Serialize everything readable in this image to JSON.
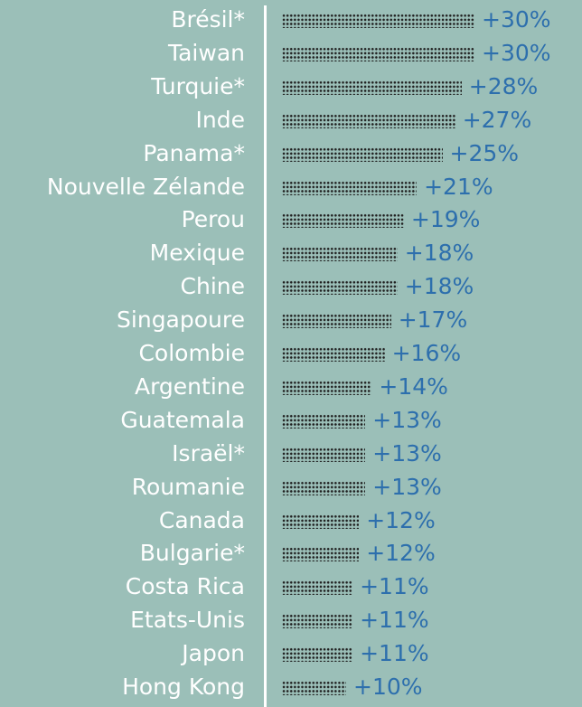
{
  "chart_data": {
    "type": "bar",
    "categories": [
      "Brésil*",
      "Taiwan",
      "Turquie*",
      "Inde",
      "Panama*",
      "Nouvelle Zélande",
      "Perou",
      "Mexique",
      "Chine",
      "Singapoure",
      "Colombie",
      "Argentine",
      "Guatemala",
      "Israël*",
      "Roumanie",
      "Canada",
      "Bulgarie*",
      "Costa Rica",
      "Etats-Unis",
      "Japon",
      "Hong Kong"
    ],
    "values": [
      30,
      30,
      28,
      27,
      25,
      21,
      19,
      18,
      18,
      17,
      16,
      14,
      13,
      13,
      13,
      12,
      12,
      11,
      11,
      11,
      10
    ],
    "value_labels": [
      "+30%",
      "+30%",
      "+28%",
      "+27%",
      "+25%",
      "+21%",
      "+19%",
      "+18%",
      "+18%",
      "+17%",
      "+16%",
      "+14%",
      "+13%",
      "+13%",
      "+13%",
      "+12%",
      "+12%",
      "+11%",
      "+11%",
      "+11%",
      "+10%"
    ],
    "orientation": "horizontal",
    "bar_style": "dotted",
    "colors": {
      "background": "#9bbfb8",
      "label": "#ffffff",
      "value": "#2d6fad",
      "dots": "#1f1f1f",
      "axis": "#ffffff"
    }
  }
}
